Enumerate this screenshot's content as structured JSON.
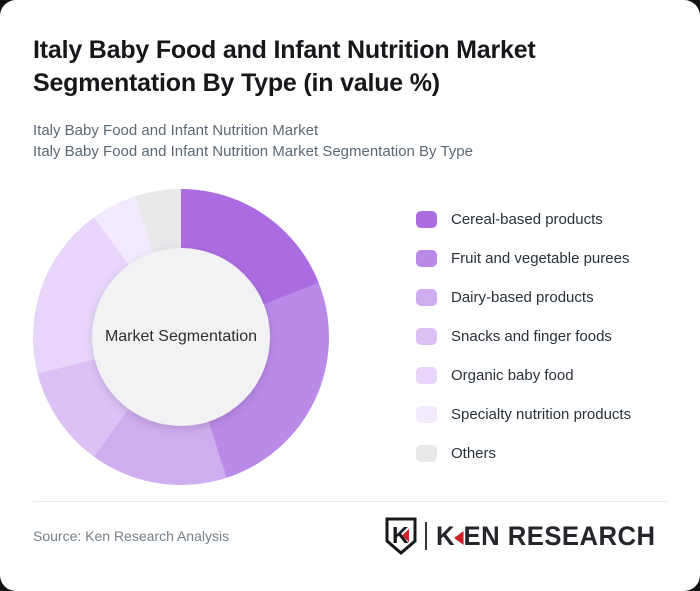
{
  "page": {
    "background_color": "#131313",
    "card_background": "#ffffff"
  },
  "header": {
    "title_line1": "Italy Baby Food and Infant Nutrition Market",
    "title_line2": "Segmentation By Type (in value %)",
    "subtitle_line1": "Italy Baby Food and Infant Nutrition Market",
    "subtitle_line2": "Italy Baby Food and Infant Nutrition Market Segmentation By Type"
  },
  "chart_data": {
    "type": "pie",
    "variant": "donut",
    "title": "Italy Baby Food and Infant Nutrition Market Segmentation By Type (in value %)",
    "center_label": "Market Segmentation",
    "unit": "percent",
    "start_angle_deg": 0,
    "direction": "clockwise",
    "legend_position": "right",
    "categories": [
      "Cereal-based products",
      "Fruit and vegetable purees",
      "Dairy-based products",
      "Snacks and finger foods",
      "Organic baby food",
      "Specialty nutrition products",
      "Others"
    ],
    "values": [
      19,
      26,
      15,
      11,
      19,
      5,
      5
    ],
    "colors": [
      "#ab6ce1",
      "#ba8ae8",
      "#d0acf0",
      "#dcc1f5",
      "#e7d6f9",
      "#f2eafc",
      "#e8e7ea"
    ],
    "inner_circle_color": "#f2f1f3"
  },
  "footer": {
    "source_text": "Source: Ken Research Analysis",
    "brand": {
      "badge_letter": "K",
      "wordmark_first_letter": "K",
      "wordmark_rest": "EN RESEARCH",
      "accent_color": "#cf2027",
      "text_color": "#24262c"
    }
  }
}
